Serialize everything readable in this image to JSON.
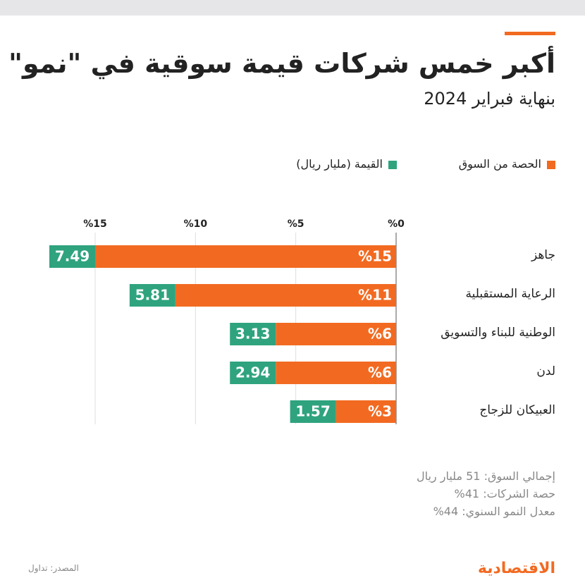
{
  "chart_data": {
    "type": "bar",
    "title": "أكبر خمس شركات قيمة سوقية في \"نمو\"",
    "subtitle": "بنهاية فبراير 2024",
    "categories": [
      "جاهز",
      "الرعاية المستقبلية",
      "الوطنية للبناء والتسويق",
      "لدن",
      "العبيكان للزجاج"
    ],
    "series": [
      {
        "name": "الحصة من السوق",
        "color": "#f26a21",
        "values": [
          15,
          11,
          6,
          6,
          3
        ],
        "value_labels": [
          "%15",
          "%11",
          "%6",
          "%6",
          "%3"
        ]
      },
      {
        "name": "القيمة (مليار ريال)",
        "color": "#2fa37e",
        "values": [
          7.49,
          5.81,
          3.13,
          2.94,
          1.57
        ]
      }
    ],
    "xlim": [
      0,
      15
    ],
    "xticks": [
      {
        "value": 0,
        "label": "%0"
      },
      {
        "value": 5,
        "label": "%5"
      },
      {
        "value": 10,
        "label": "%10"
      },
      {
        "value": 15,
        "label": "%15"
      }
    ],
    "grid": true
  },
  "notes": [
    "إجمالي السوق: 51 مليار ريال",
    "حصة الشركات: 41%",
    "معدل النمو السنوي: 44%"
  ],
  "source": "المصدر: تداول",
  "logo": "الاقتصادية"
}
